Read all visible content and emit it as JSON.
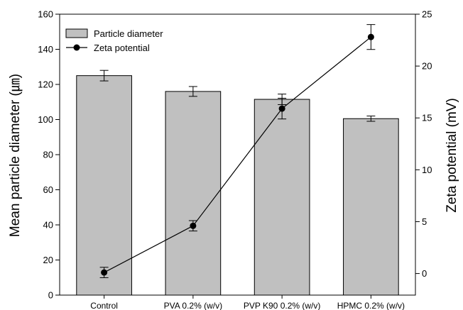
{
  "chart_data": {
    "type": "bar",
    "categories": [
      "Control",
      "PVA 0.2% (w/v)",
      "PVP K90 0.2% (w/v)",
      "HPMC 0.2% (w/v)"
    ],
    "series": [
      {
        "name": "Particle diameter",
        "type": "bar",
        "axis": "left",
        "values": [
          125,
          116,
          111.5,
          100.5
        ],
        "errors": [
          3,
          2.8,
          3,
          1.5
        ]
      },
      {
        "name": "Zeta potential",
        "type": "line",
        "axis": "right",
        "values": [
          0.1,
          4.6,
          15.9,
          22.8
        ],
        "errors": [
          0.5,
          0.5,
          1.0,
          1.2
        ]
      }
    ],
    "ylabel": "Mean particle diameter (㎛)",
    "y2label": "Zeta potential (mV)",
    "ylim": [
      0,
      160
    ],
    "y2lim": [
      -2.08,
      25
    ],
    "yticks": [
      0,
      20,
      40,
      60,
      80,
      100,
      120,
      140,
      160
    ],
    "y2ticks": [
      0,
      5,
      10,
      15,
      20,
      25
    ],
    "legend_position": "top-left",
    "grid": false,
    "colors": {
      "bar_fill": "#c0c0c0",
      "bar_stroke": "#000000",
      "line": "#000000"
    }
  }
}
